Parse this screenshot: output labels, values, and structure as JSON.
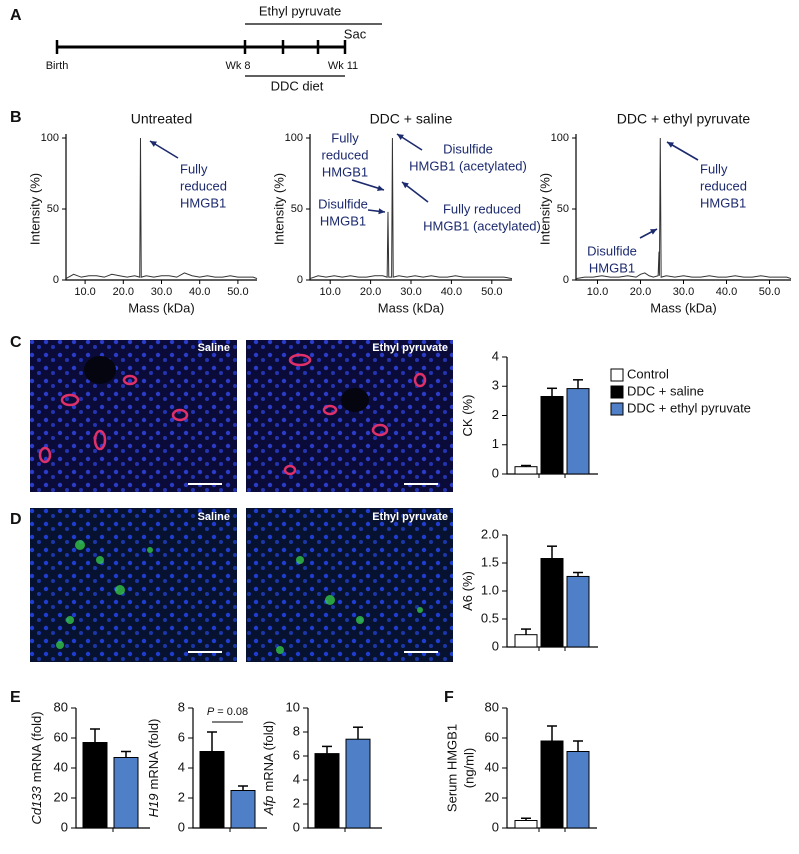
{
  "panel_labels": [
    "A",
    "B",
    "C",
    "D",
    "E",
    "F"
  ],
  "timeline": {
    "treatment": "Ethyl pyruvate",
    "end": "Sac",
    "start": "Birth",
    "week8": "Wk 8",
    "week11": "Wk 11",
    "diet": "DDC diet"
  },
  "images": {
    "saline": "Saline",
    "ethyl_pyruvate": "Ethyl pyruvate"
  },
  "legend": [
    {
      "name": "Control",
      "color": "#ffffff"
    },
    {
      "name": "DDC + saline",
      "color": "#000000"
    },
    {
      "name": "DDC + ethyl pyruvate",
      "color": "#4f7fc6"
    }
  ],
  "chart_data": [
    {
      "type": "line",
      "title": "Untreated",
      "xlabel": "Mass (kDa)",
      "ylabel": "Intensity (%)",
      "color": "#333333",
      "x": [
        5,
        7,
        9,
        11,
        13,
        15,
        17,
        19,
        21,
        23,
        24.3,
        24.5,
        24.7,
        26,
        28,
        30,
        32,
        34,
        36,
        38,
        40,
        42,
        44,
        46,
        48,
        50,
        52,
        54,
        55
      ],
      "values": [
        1,
        4,
        2,
        3,
        3,
        2,
        4,
        3,
        2,
        3,
        2,
        100,
        2,
        3,
        2,
        3,
        3,
        2,
        5,
        3,
        2,
        3,
        2,
        2,
        3,
        2,
        2,
        2,
        1
      ],
      "xlim": [
        5,
        55
      ],
      "ylim": [
        0,
        100
      ],
      "xticks": [
        {
          "value": 10,
          "label": "10.0"
        },
        {
          "value": 20,
          "label": "20.0"
        },
        {
          "value": 30,
          "label": "30.0"
        },
        {
          "value": 40,
          "label": "40.0"
        },
        {
          "value": 50,
          "label": "50.0"
        }
      ],
      "yticks": [
        0,
        50,
        100
      ],
      "annotations": [
        {
          "lines": [
            "Fully",
            "reduced",
            "HMGB1"
          ]
        }
      ]
    },
    {
      "type": "line",
      "title": "DDC + saline",
      "xlabel": "Mass (kDa)",
      "ylabel": "Intensity (%)",
      "color": "#333333",
      "x": [
        5,
        7,
        9,
        11,
        13,
        15,
        17,
        19,
        21,
        23,
        24.1,
        24.3,
        24.5,
        25.2,
        25.4,
        25.6,
        27,
        29,
        31,
        33,
        35,
        37,
        39,
        41,
        43,
        45,
        47,
        49,
        51,
        53,
        55
      ],
      "values": [
        1,
        3,
        2,
        3,
        2,
        3,
        2,
        2,
        3,
        3,
        2,
        48,
        2,
        2,
        100,
        2,
        3,
        2,
        3,
        2,
        3,
        2,
        2,
        3,
        2,
        2,
        2,
        2,
        2,
        2,
        1
      ],
      "xlim": [
        5,
        55
      ],
      "ylim": [
        0,
        100
      ],
      "xticks": [
        {
          "value": 10,
          "label": "10.0"
        },
        {
          "value": 20,
          "label": "20.0"
        },
        {
          "value": 30,
          "label": "30.0"
        },
        {
          "value": 40,
          "label": "40.0"
        },
        {
          "value": 50,
          "label": "50.0"
        }
      ],
      "yticks": [
        0,
        50,
        100
      ],
      "annotations": [
        {
          "lines": [
            "Fully",
            "reduced",
            "HMGB1"
          ]
        },
        {
          "lines": [
            "Disulfide",
            "HMGB1"
          ]
        },
        {
          "lines": [
            "Disulfide",
            "HMGB1 (acetylated)"
          ]
        },
        {
          "lines": [
            "Fully reduced",
            "HMGB1 (acetylated)"
          ]
        }
      ]
    },
    {
      "type": "line",
      "title": "DDC + ethyl pyruvate",
      "xlabel": "Mass (kDa)",
      "ylabel": "Intensity (%)",
      "color": "#333333",
      "x": [
        5,
        7,
        9,
        11,
        13,
        15,
        17,
        19,
        20,
        21,
        22,
        23,
        24.1,
        24.3,
        24.4,
        24.6,
        24.8,
        26,
        28,
        30,
        32,
        34,
        36,
        38,
        40,
        42,
        44,
        46,
        48,
        50,
        52,
        54,
        55
      ],
      "values": [
        1,
        2,
        2,
        3,
        2,
        2,
        3,
        2,
        4,
        5,
        3,
        2,
        3,
        20,
        3,
        100,
        2,
        3,
        2,
        3,
        2,
        2,
        3,
        2,
        2,
        3,
        2,
        2,
        3,
        2,
        2,
        2,
        1
      ],
      "xlim": [
        5,
        55
      ],
      "ylim": [
        0,
        100
      ],
      "xticks": [
        {
          "value": 10,
          "label": "10.0"
        },
        {
          "value": 20,
          "label": "20.0"
        },
        {
          "value": 30,
          "label": "30.0"
        },
        {
          "value": 40,
          "label": "40.0"
        },
        {
          "value": 50,
          "label": "50.0"
        }
      ],
      "yticks": [
        0,
        50,
        100
      ],
      "annotations": [
        {
          "lines": [
            "Fully",
            "reduced",
            "HMGB1"
          ]
        },
        {
          "lines": [
            "Disulfide",
            "HMGB1"
          ]
        }
      ]
    },
    {
      "type": "bar",
      "ylabel": "CK (%)",
      "values": [
        0.25,
        2.65,
        2.92
      ],
      "errors": [
        0.04,
        0.28,
        0.3
      ],
      "colors": [
        "#ffffff",
        "#000000",
        "#4f7fc6"
      ],
      "ylim": [
        0,
        4
      ],
      "yticks": [
        0,
        1,
        2,
        3,
        4
      ]
    },
    {
      "type": "bar",
      "ylabel": "A6 (%)",
      "values": [
        0.22,
        1.58,
        1.26
      ],
      "errors": [
        0.1,
        0.22,
        0.07
      ],
      "colors": [
        "#ffffff",
        "#000000",
        "#4f7fc6"
      ],
      "ylim": [
        0,
        2
      ],
      "yticks": [
        0,
        0.5,
        {
          "value": 1,
          "label": "1.0"
        },
        1.5,
        {
          "value": 2,
          "label": "2.0"
        }
      ]
    },
    {
      "type": "bar",
      "ylabel_gene": "Cd133",
      "ylabel": "mRNA (fold)",
      "values": [
        57,
        47
      ],
      "errors": [
        9,
        4
      ],
      "colors": [
        "#000000",
        "#4f7fc6"
      ],
      "ylim": [
        0,
        80
      ],
      "yticks": [
        0,
        20,
        40,
        60,
        80
      ]
    },
    {
      "type": "bar",
      "ylabel_gene": "H19",
      "ylabel": "mRNA (fold)",
      "values": [
        5.1,
        2.5
      ],
      "errors": [
        1.3,
        0.3
      ],
      "colors": [
        "#000000",
        "#4f7fc6"
      ],
      "ylim": [
        0,
        8
      ],
      "yticks": [
        0,
        2,
        4,
        6,
        8
      ],
      "annotation": {
        "italic": "P",
        "text": "= 0.08"
      }
    },
    {
      "type": "bar",
      "ylabel_gene": "Afp",
      "ylabel": "mRNA (fold)",
      "values": [
        6.2,
        7.4
      ],
      "errors": [
        0.6,
        1.0
      ],
      "colors": [
        "#000000",
        "#4f7fc6"
      ],
      "ylim": [
        0,
        10
      ],
      "yticks": [
        0,
        2,
        4,
        6,
        8,
        10
      ]
    },
    {
      "type": "bar",
      "ylabel": [
        "Serum HMGB1",
        "(ng/ml)"
      ],
      "values": [
        5,
        58,
        51
      ],
      "errors": [
        1.5,
        10,
        7
      ],
      "colors": [
        "#ffffff",
        "#000000",
        "#4f7fc6"
      ],
      "ylim": [
        0,
        80
      ],
      "yticks": [
        0,
        20,
        40,
        60,
        80
      ]
    }
  ]
}
